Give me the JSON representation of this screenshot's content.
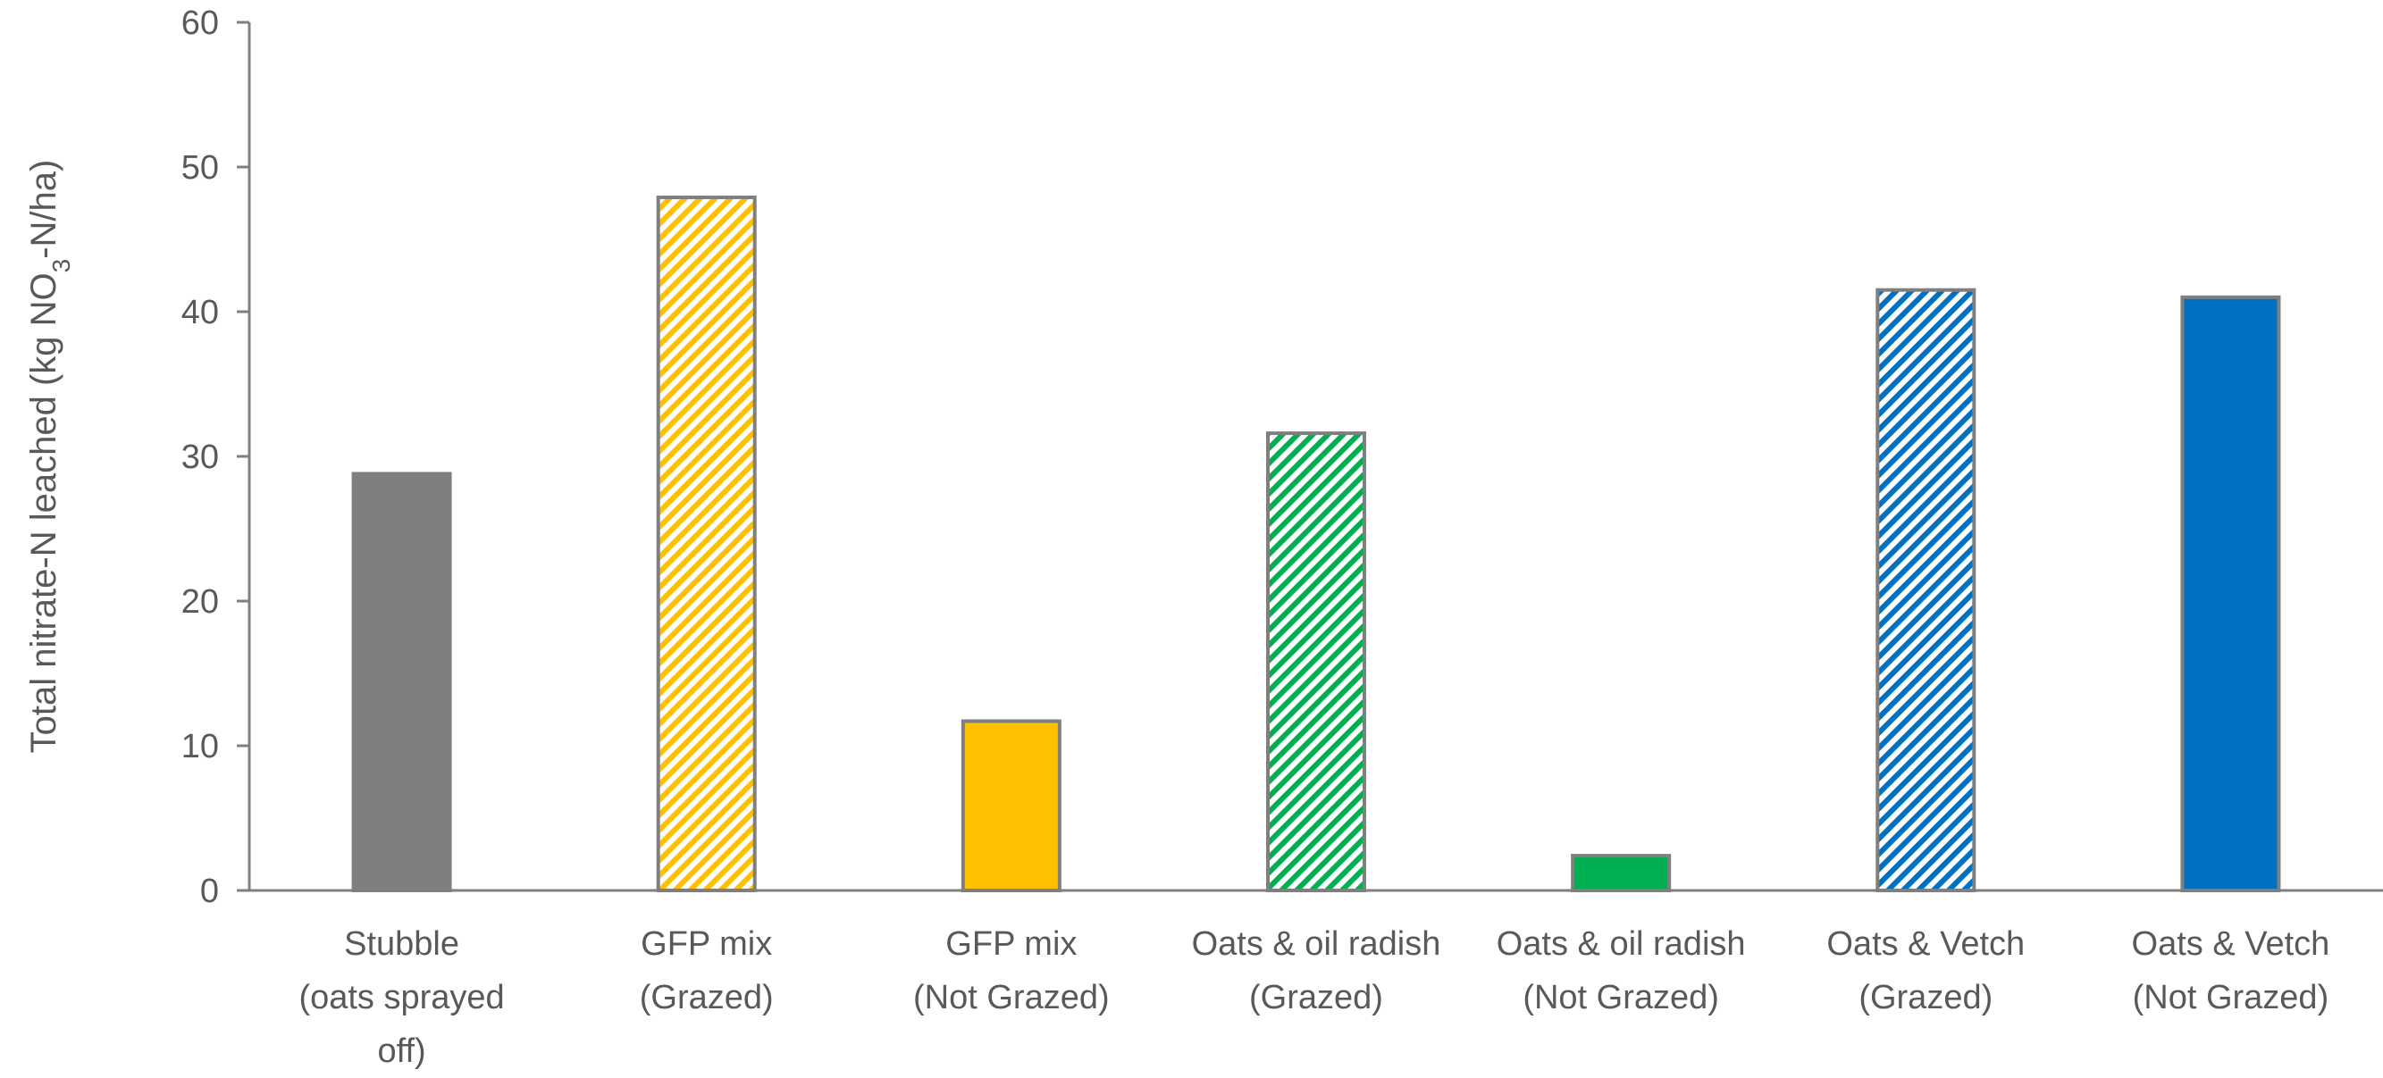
{
  "chart_data": {
    "type": "bar",
    "title": "",
    "xlabel": "",
    "ylabel": {
      "prefix": "Total nitrate-N leached (kg NO",
      "subscript": "3",
      "suffix": "-N/ha)"
    },
    "ylim": [
      0,
      60
    ],
    "yticks": [
      0,
      10,
      20,
      30,
      40,
      50,
      60
    ],
    "grid": false,
    "legend": "none",
    "categories": [
      [
        "Stubble",
        "(oats sprayed",
        "off)"
      ],
      [
        "GFP mix",
        "(Grazed)"
      ],
      [
        "GFP mix",
        "(Not Grazed)"
      ],
      [
        "Oats & oil radish",
        "(Grazed)"
      ],
      [
        "Oats & oil radish",
        "(Not Grazed)"
      ],
      [
        "Oats & Vetch",
        "(Grazed)"
      ],
      [
        "Oats & Vetch",
        "(Not Grazed)"
      ]
    ],
    "values": [
      28.8,
      47.9,
      11.7,
      31.6,
      2.4,
      41.5,
      41.0
    ],
    "bar_styles": [
      {
        "color": "#7f7f7f",
        "pattern": "solid"
      },
      {
        "color": "#ffc000",
        "pattern": "hatch"
      },
      {
        "color": "#ffc000",
        "pattern": "solid"
      },
      {
        "color": "#00b050",
        "pattern": "hatch"
      },
      {
        "color": "#00b050",
        "pattern": "solid"
      },
      {
        "color": "#0070c0",
        "pattern": "hatch"
      },
      {
        "color": "#0070c0",
        "pattern": "solid"
      }
    ],
    "bar_outline_color": "#7f7f7f",
    "axis_color": "#7f7f7f",
    "text_color": "#595959"
  }
}
